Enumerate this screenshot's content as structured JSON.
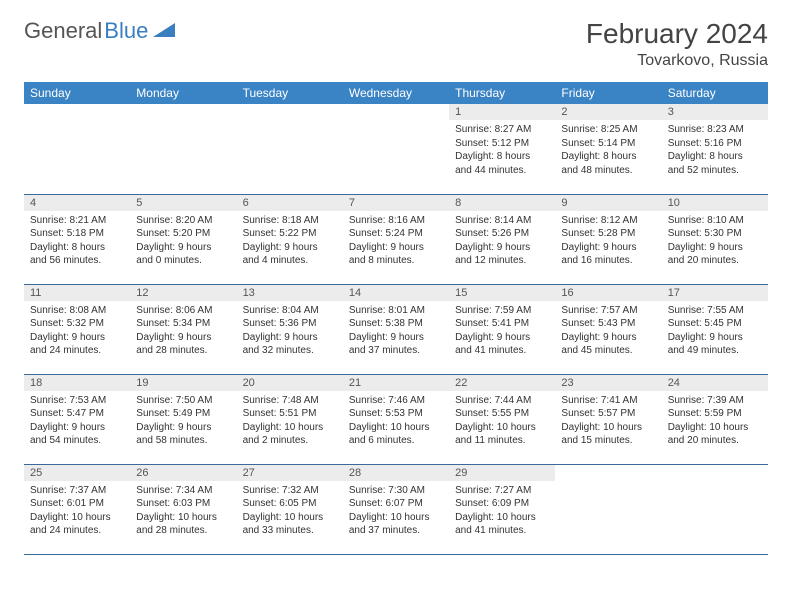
{
  "logo": {
    "text1": "General",
    "text2": "Blue"
  },
  "title": "February 2024",
  "location": "Tovarkovo, Russia",
  "colors": {
    "header_bg": "#3a83c4",
    "header_text": "#ffffff",
    "daynum_bg": "#ececec",
    "border": "#3a6a9a",
    "logo_gray": "#555555",
    "logo_blue": "#3a7ebf"
  },
  "weekdays": [
    "Sunday",
    "Monday",
    "Tuesday",
    "Wednesday",
    "Thursday",
    "Friday",
    "Saturday"
  ],
  "weeks": [
    [
      null,
      null,
      null,
      null,
      {
        "n": "1",
        "sr": "Sunrise: 8:27 AM",
        "ss": "Sunset: 5:12 PM",
        "d1": "Daylight: 8 hours",
        "d2": "and 44 minutes."
      },
      {
        "n": "2",
        "sr": "Sunrise: 8:25 AM",
        "ss": "Sunset: 5:14 PM",
        "d1": "Daylight: 8 hours",
        "d2": "and 48 minutes."
      },
      {
        "n": "3",
        "sr": "Sunrise: 8:23 AM",
        "ss": "Sunset: 5:16 PM",
        "d1": "Daylight: 8 hours",
        "d2": "and 52 minutes."
      }
    ],
    [
      {
        "n": "4",
        "sr": "Sunrise: 8:21 AM",
        "ss": "Sunset: 5:18 PM",
        "d1": "Daylight: 8 hours",
        "d2": "and 56 minutes."
      },
      {
        "n": "5",
        "sr": "Sunrise: 8:20 AM",
        "ss": "Sunset: 5:20 PM",
        "d1": "Daylight: 9 hours",
        "d2": "and 0 minutes."
      },
      {
        "n": "6",
        "sr": "Sunrise: 8:18 AM",
        "ss": "Sunset: 5:22 PM",
        "d1": "Daylight: 9 hours",
        "d2": "and 4 minutes."
      },
      {
        "n": "7",
        "sr": "Sunrise: 8:16 AM",
        "ss": "Sunset: 5:24 PM",
        "d1": "Daylight: 9 hours",
        "d2": "and 8 minutes."
      },
      {
        "n": "8",
        "sr": "Sunrise: 8:14 AM",
        "ss": "Sunset: 5:26 PM",
        "d1": "Daylight: 9 hours",
        "d2": "and 12 minutes."
      },
      {
        "n": "9",
        "sr": "Sunrise: 8:12 AM",
        "ss": "Sunset: 5:28 PM",
        "d1": "Daylight: 9 hours",
        "d2": "and 16 minutes."
      },
      {
        "n": "10",
        "sr": "Sunrise: 8:10 AM",
        "ss": "Sunset: 5:30 PM",
        "d1": "Daylight: 9 hours",
        "d2": "and 20 minutes."
      }
    ],
    [
      {
        "n": "11",
        "sr": "Sunrise: 8:08 AM",
        "ss": "Sunset: 5:32 PM",
        "d1": "Daylight: 9 hours",
        "d2": "and 24 minutes."
      },
      {
        "n": "12",
        "sr": "Sunrise: 8:06 AM",
        "ss": "Sunset: 5:34 PM",
        "d1": "Daylight: 9 hours",
        "d2": "and 28 minutes."
      },
      {
        "n": "13",
        "sr": "Sunrise: 8:04 AM",
        "ss": "Sunset: 5:36 PM",
        "d1": "Daylight: 9 hours",
        "d2": "and 32 minutes."
      },
      {
        "n": "14",
        "sr": "Sunrise: 8:01 AM",
        "ss": "Sunset: 5:38 PM",
        "d1": "Daylight: 9 hours",
        "d2": "and 37 minutes."
      },
      {
        "n": "15",
        "sr": "Sunrise: 7:59 AM",
        "ss": "Sunset: 5:41 PM",
        "d1": "Daylight: 9 hours",
        "d2": "and 41 minutes."
      },
      {
        "n": "16",
        "sr": "Sunrise: 7:57 AM",
        "ss": "Sunset: 5:43 PM",
        "d1": "Daylight: 9 hours",
        "d2": "and 45 minutes."
      },
      {
        "n": "17",
        "sr": "Sunrise: 7:55 AM",
        "ss": "Sunset: 5:45 PM",
        "d1": "Daylight: 9 hours",
        "d2": "and 49 minutes."
      }
    ],
    [
      {
        "n": "18",
        "sr": "Sunrise: 7:53 AM",
        "ss": "Sunset: 5:47 PM",
        "d1": "Daylight: 9 hours",
        "d2": "and 54 minutes."
      },
      {
        "n": "19",
        "sr": "Sunrise: 7:50 AM",
        "ss": "Sunset: 5:49 PM",
        "d1": "Daylight: 9 hours",
        "d2": "and 58 minutes."
      },
      {
        "n": "20",
        "sr": "Sunrise: 7:48 AM",
        "ss": "Sunset: 5:51 PM",
        "d1": "Daylight: 10 hours",
        "d2": "and 2 minutes."
      },
      {
        "n": "21",
        "sr": "Sunrise: 7:46 AM",
        "ss": "Sunset: 5:53 PM",
        "d1": "Daylight: 10 hours",
        "d2": "and 6 minutes."
      },
      {
        "n": "22",
        "sr": "Sunrise: 7:44 AM",
        "ss": "Sunset: 5:55 PM",
        "d1": "Daylight: 10 hours",
        "d2": "and 11 minutes."
      },
      {
        "n": "23",
        "sr": "Sunrise: 7:41 AM",
        "ss": "Sunset: 5:57 PM",
        "d1": "Daylight: 10 hours",
        "d2": "and 15 minutes."
      },
      {
        "n": "24",
        "sr": "Sunrise: 7:39 AM",
        "ss": "Sunset: 5:59 PM",
        "d1": "Daylight: 10 hours",
        "d2": "and 20 minutes."
      }
    ],
    [
      {
        "n": "25",
        "sr": "Sunrise: 7:37 AM",
        "ss": "Sunset: 6:01 PM",
        "d1": "Daylight: 10 hours",
        "d2": "and 24 minutes."
      },
      {
        "n": "26",
        "sr": "Sunrise: 7:34 AM",
        "ss": "Sunset: 6:03 PM",
        "d1": "Daylight: 10 hours",
        "d2": "and 28 minutes."
      },
      {
        "n": "27",
        "sr": "Sunrise: 7:32 AM",
        "ss": "Sunset: 6:05 PM",
        "d1": "Daylight: 10 hours",
        "d2": "and 33 minutes."
      },
      {
        "n": "28",
        "sr": "Sunrise: 7:30 AM",
        "ss": "Sunset: 6:07 PM",
        "d1": "Daylight: 10 hours",
        "d2": "and 37 minutes."
      },
      {
        "n": "29",
        "sr": "Sunrise: 7:27 AM",
        "ss": "Sunset: 6:09 PM",
        "d1": "Daylight: 10 hours",
        "d2": "and 41 minutes."
      },
      null,
      null
    ]
  ]
}
